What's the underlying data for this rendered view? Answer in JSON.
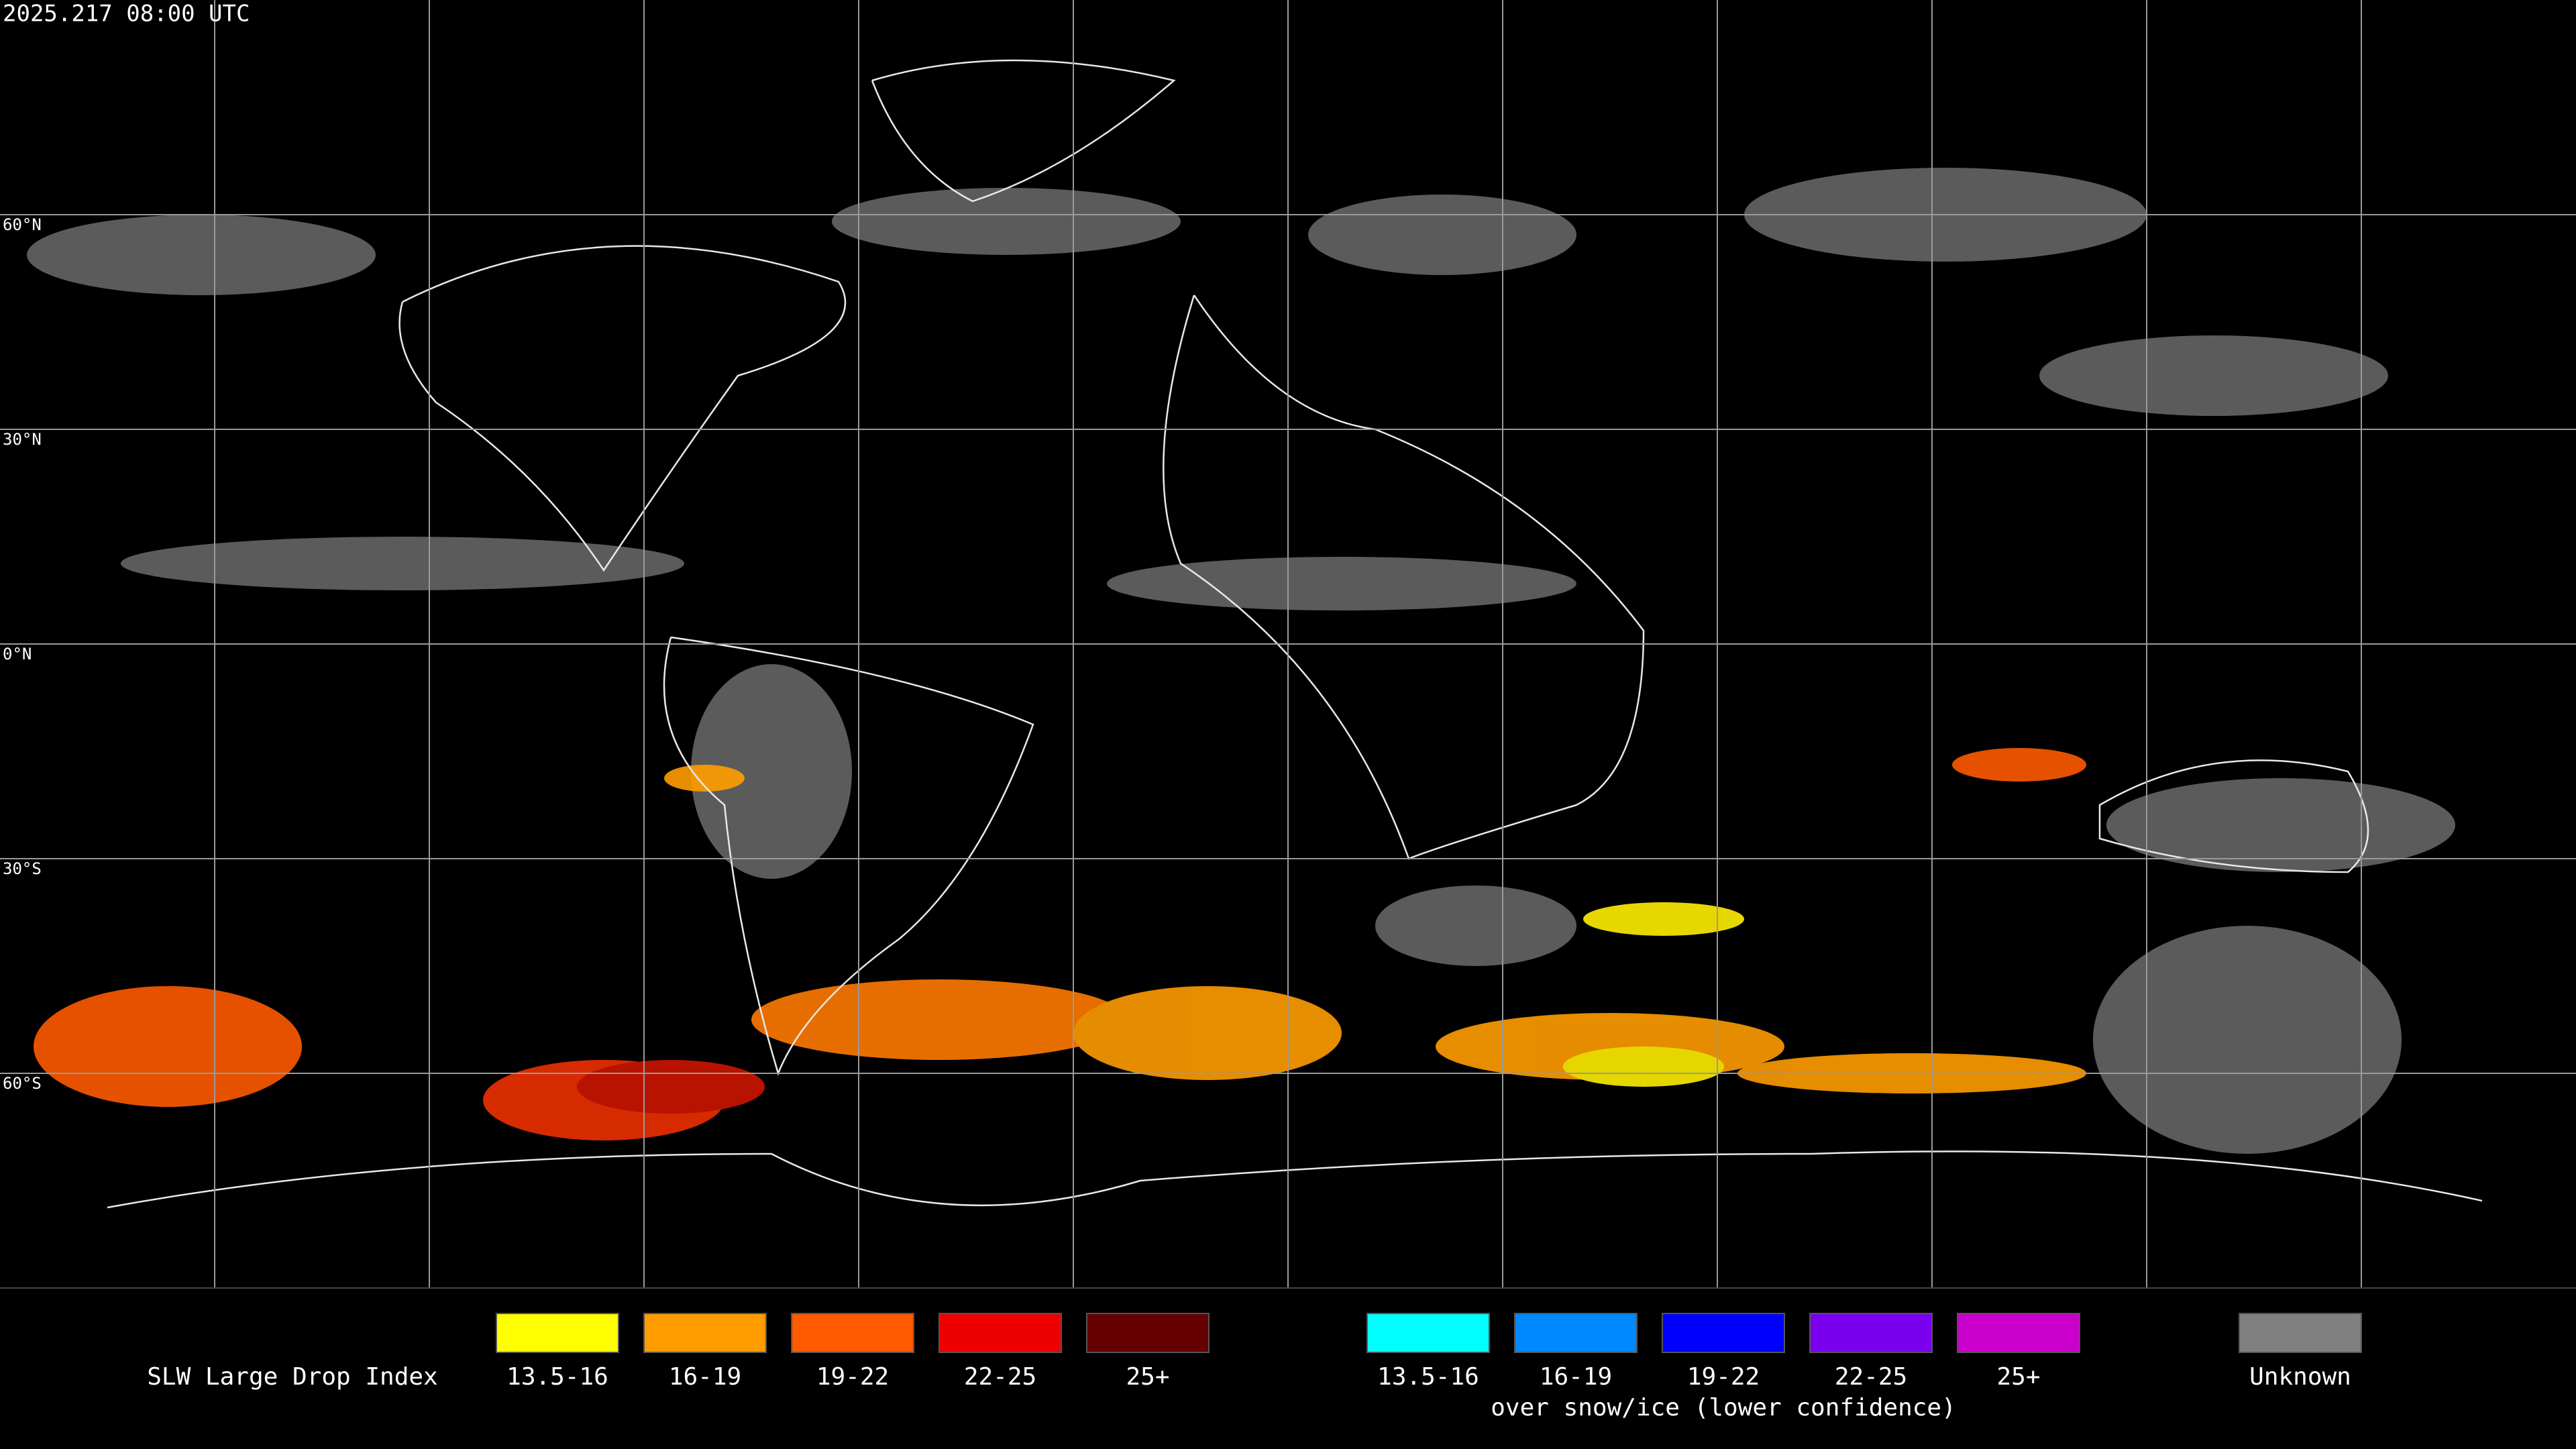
{
  "header": {
    "timestamp": "2025.217 08:00 UTC"
  },
  "map": {
    "latitude_labels": [
      "60°N",
      "30°N",
      "0°N",
      "30°S",
      "60°S"
    ]
  },
  "legend": {
    "title": "SLW Large Drop Index",
    "groups": [
      {
        "items": [
          {
            "label": "13.5-16",
            "color": "#ffff00"
          },
          {
            "label": "16-19",
            "color": "#ff9c00"
          },
          {
            "label": "19-22",
            "color": "#ff5a00"
          },
          {
            "label": "22-25",
            "color": "#ee0000"
          },
          {
            "label": "25+",
            "color": "#650000"
          }
        ]
      },
      {
        "items": [
          {
            "label": "13.5-16",
            "color": "#00ffff"
          },
          {
            "label": "16-19",
            "color": "#0088ff"
          },
          {
            "label": "19-22",
            "color": "#0000ff"
          },
          {
            "label": "22-25",
            "color": "#7a00ee"
          },
          {
            "label": "25+",
            "color": "#cc00cc"
          }
        ],
        "caption": "over snow/ice (lower confidence)"
      },
      {
        "items": [
          {
            "label": "Unknown",
            "color": "#808080"
          }
        ]
      }
    ]
  }
}
